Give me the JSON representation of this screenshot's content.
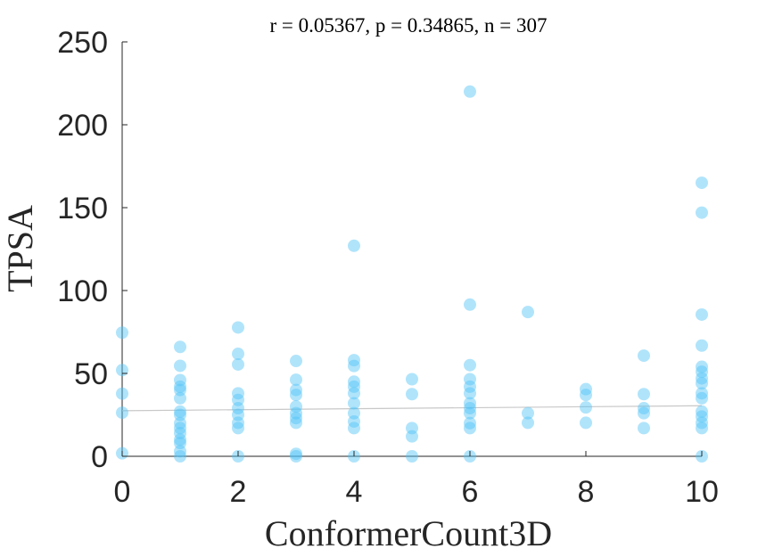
{
  "chart_data": {
    "type": "scatter",
    "title": "r = 0.05367, p = 0.34865, n = 307",
    "xlabel": "ConformerCount3D",
    "ylabel": "TPSA",
    "xlim": [
      0,
      10
    ],
    "ylim": [
      0,
      250
    ],
    "xticks": [
      "0",
      "2",
      "4",
      "6",
      "8",
      "10"
    ],
    "yticks": [
      "0",
      "50",
      "100",
      "150",
      "200",
      "250"
    ],
    "grid": false,
    "point_color": "#4fc3f7",
    "trend_color": "#c8c8c8",
    "trend_line": {
      "x": [
        0,
        10
      ],
      "y": [
        27.5,
        30.5
      ]
    },
    "points": [
      {
        "x": 0,
        "y": 74.6
      },
      {
        "x": 0,
        "y": 52.0
      },
      {
        "x": 0,
        "y": 37.8
      },
      {
        "x": 0,
        "y": 26.3
      },
      {
        "x": 0,
        "y": 1.8
      },
      {
        "x": 1,
        "y": 66.0
      },
      {
        "x": 1,
        "y": 54.6
      },
      {
        "x": 1,
        "y": 46.0
      },
      {
        "x": 1,
        "y": 42.0
      },
      {
        "x": 1,
        "y": 40.0
      },
      {
        "x": 1,
        "y": 35.0
      },
      {
        "x": 1,
        "y": 27.0
      },
      {
        "x": 1,
        "y": 25.0
      },
      {
        "x": 1,
        "y": 20.0
      },
      {
        "x": 1,
        "y": 17.0
      },
      {
        "x": 1,
        "y": 14.0
      },
      {
        "x": 1,
        "y": 10.0
      },
      {
        "x": 1,
        "y": 8.0
      },
      {
        "x": 1,
        "y": 3.0
      },
      {
        "x": 1,
        "y": 0.0
      },
      {
        "x": 2,
        "y": 77.7
      },
      {
        "x": 2,
        "y": 61.8
      },
      {
        "x": 2,
        "y": 55.4
      },
      {
        "x": 2,
        "y": 38.0
      },
      {
        "x": 2,
        "y": 34.0
      },
      {
        "x": 2,
        "y": 29.0
      },
      {
        "x": 2,
        "y": 25.0
      },
      {
        "x": 2,
        "y": 20.2
      },
      {
        "x": 2,
        "y": 17.0
      },
      {
        "x": 2,
        "y": 0.0
      },
      {
        "x": 3,
        "y": 57.5
      },
      {
        "x": 3,
        "y": 46.2
      },
      {
        "x": 3,
        "y": 40.0
      },
      {
        "x": 3,
        "y": 37.0
      },
      {
        "x": 3,
        "y": 30.0
      },
      {
        "x": 3,
        "y": 26.0
      },
      {
        "x": 3,
        "y": 23.0
      },
      {
        "x": 3,
        "y": 20.2
      },
      {
        "x": 3,
        "y": 1.5
      },
      {
        "x": 3,
        "y": 0.0
      },
      {
        "x": 4,
        "y": 127.0
      },
      {
        "x": 4,
        "y": 58.0
      },
      {
        "x": 4,
        "y": 54.5
      },
      {
        "x": 4,
        "y": 45.0
      },
      {
        "x": 4,
        "y": 42.0
      },
      {
        "x": 4,
        "y": 38.0
      },
      {
        "x": 4,
        "y": 32.0
      },
      {
        "x": 4,
        "y": 26.0
      },
      {
        "x": 4,
        "y": 21.0
      },
      {
        "x": 4,
        "y": 17.0
      },
      {
        "x": 4,
        "y": 0.0
      },
      {
        "x": 5,
        "y": 46.5
      },
      {
        "x": 5,
        "y": 37.5
      },
      {
        "x": 5,
        "y": 17.0
      },
      {
        "x": 5,
        "y": 12.0
      },
      {
        "x": 5,
        "y": 0.0
      },
      {
        "x": 6,
        "y": 220.0
      },
      {
        "x": 6,
        "y": 91.5
      },
      {
        "x": 6,
        "y": 55.0
      },
      {
        "x": 6,
        "y": 46.5
      },
      {
        "x": 6,
        "y": 42.0
      },
      {
        "x": 6,
        "y": 38.0
      },
      {
        "x": 6,
        "y": 32.0
      },
      {
        "x": 6,
        "y": 29.0
      },
      {
        "x": 6,
        "y": 26.0
      },
      {
        "x": 6,
        "y": 20.0
      },
      {
        "x": 6,
        "y": 17.0
      },
      {
        "x": 6,
        "y": 0.0
      },
      {
        "x": 7,
        "y": 87.0
      },
      {
        "x": 7,
        "y": 26.0
      },
      {
        "x": 7,
        "y": 20.2
      },
      {
        "x": 8,
        "y": 40.5
      },
      {
        "x": 8,
        "y": 37.0
      },
      {
        "x": 8,
        "y": 29.5
      },
      {
        "x": 8,
        "y": 20.2
      },
      {
        "x": 9,
        "y": 60.7
      },
      {
        "x": 9,
        "y": 37.5
      },
      {
        "x": 9,
        "y": 29.0
      },
      {
        "x": 9,
        "y": 26.0
      },
      {
        "x": 9,
        "y": 17.0
      },
      {
        "x": 10,
        "y": 165.0
      },
      {
        "x": 10,
        "y": 147.0
      },
      {
        "x": 10,
        "y": 85.5
      },
      {
        "x": 10,
        "y": 66.8
      },
      {
        "x": 10,
        "y": 54.0
      },
      {
        "x": 10,
        "y": 51.0
      },
      {
        "x": 10,
        "y": 47.0
      },
      {
        "x": 10,
        "y": 44.0
      },
      {
        "x": 10,
        "y": 38.0
      },
      {
        "x": 10,
        "y": 35.0
      },
      {
        "x": 10,
        "y": 27.0
      },
      {
        "x": 10,
        "y": 24.0
      },
      {
        "x": 10,
        "y": 20.2
      },
      {
        "x": 10,
        "y": 17.0
      },
      {
        "x": 10,
        "y": 0.0
      }
    ]
  }
}
